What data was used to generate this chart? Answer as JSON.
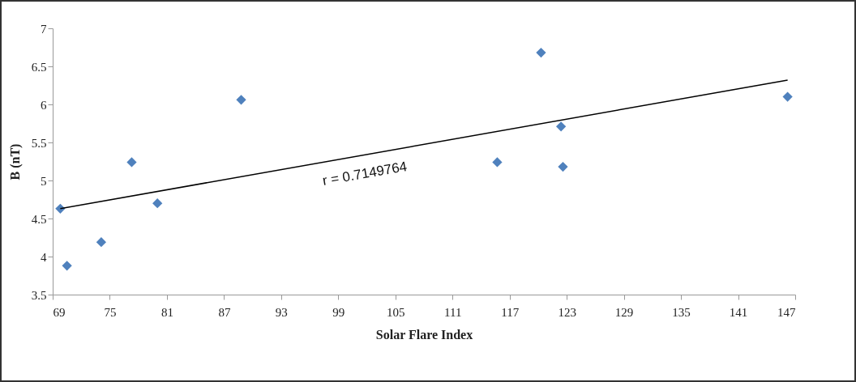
{
  "chart_data": {
    "type": "scatter",
    "xlabel": "Solar Flare Index",
    "ylabel": "B (nT)",
    "grid": false,
    "xlim": [
      69,
      147
    ],
    "xticks": [
      69,
      75,
      81,
      87,
      93,
      99,
      105,
      111,
      117,
      123,
      129,
      135,
      141,
      147
    ],
    "ylim": [
      3.5,
      7
    ],
    "yticks": [
      3.5,
      4,
      4.5,
      5,
      5.5,
      6,
      6.5,
      7
    ],
    "series": [
      {
        "marker": "diamond",
        "color": "#4f81bd",
        "x": [
          69.8,
          70.5,
          74.1,
          77.3,
          80.0,
          88.8,
          115.7,
          120.3,
          122.4,
          122.6,
          146.2
        ],
        "values": [
          4.63,
          3.88,
          4.19,
          5.24,
          4.7,
          6.06,
          5.24,
          6.68,
          5.71,
          5.18,
          6.1
        ]
      },
      {
        "type": "line",
        "color": "#000000",
        "x": [
          69.8,
          146.2
        ],
        "values": [
          4.63,
          6.32
        ]
      }
    ],
    "annotations": [
      "r = 0.7149764"
    ]
  }
}
